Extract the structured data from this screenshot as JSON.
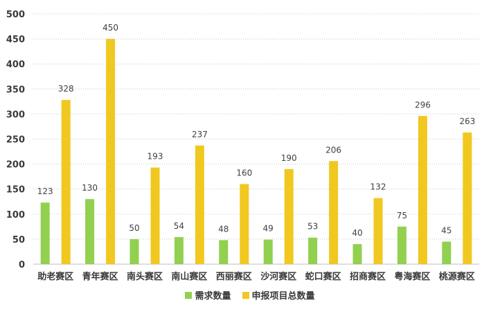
{
  "chart_data": {
    "type": "bar",
    "categories": [
      "助老赛区",
      "青年赛区",
      "南头赛区",
      "南山赛区",
      "西丽赛区",
      "沙河赛区",
      "蛇口赛区",
      "招商赛区",
      "粤海赛区",
      "桃源赛区"
    ],
    "series": [
      {
        "name": "需求数量",
        "values": [
          123,
          130,
          50,
          54,
          48,
          49,
          53,
          40,
          75,
          45
        ],
        "color": "#92d050"
      },
      {
        "name": "申报项目总数量",
        "values": [
          328,
          450,
          193,
          237,
          160,
          190,
          206,
          132,
          296,
          263
        ],
        "color": "#f0c820"
      }
    ],
    "ylim": [
      0,
      500
    ],
    "yticks": [
      0,
      50,
      100,
      150,
      200,
      250,
      300,
      350,
      400,
      450,
      500
    ],
    "grid": true,
    "legend_position": "bottom",
    "title": "",
    "xlabel": "",
    "ylabel": ""
  }
}
